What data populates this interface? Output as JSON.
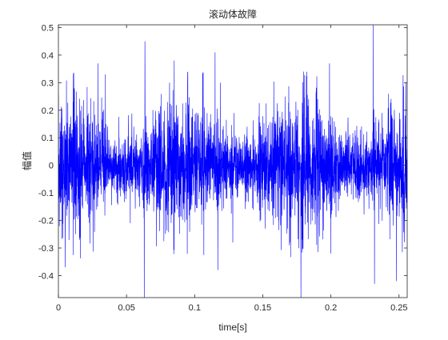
{
  "chart_data": {
    "type": "line",
    "title": "滚动体故障",
    "xlabel": "time[s]",
    "ylabel": "幅值",
    "xlim": [
      0,
      0.256
    ],
    "ylim": [
      -0.48,
      0.51
    ],
    "xticks": [
      0,
      0.05,
      0.1,
      0.15,
      0.2,
      0.25
    ],
    "xtick_labels": [
      "0",
      "0.05",
      "0.1",
      "0.15",
      "0.2",
      "0.25"
    ],
    "yticks": [
      -0.4,
      -0.3,
      -0.2,
      -0.1,
      0,
      0.1,
      0.2,
      0.3,
      0.4,
      0.5
    ],
    "ytick_labels": [
      "-0.4",
      "-0.3",
      "-0.2",
      "-0.1",
      "0",
      "0.1",
      "0.2",
      "0.3",
      "0.4",
      "0.5"
    ],
    "grid": false,
    "legend": "none",
    "series": [
      {
        "color": "#0000ff",
        "sample_rate_hz": 12000,
        "x_start": 0,
        "x_end": 0.256,
        "typical_amplitude": 0.1,
        "peaks": [
          {
            "x": 0.0635,
            "y": 0.45
          },
          {
            "x": 0.063,
            "y": -0.48
          },
          {
            "x": 0.0345,
            "y": 0.33
          },
          {
            "x": 0.029,
            "y": 0.37
          },
          {
            "x": 0.005,
            "y": -0.37
          },
          {
            "x": 0.085,
            "y": 0.38
          },
          {
            "x": 0.115,
            "y": 0.41
          },
          {
            "x": 0.117,
            "y": -0.38
          },
          {
            "x": 0.119,
            "y": 0.3
          },
          {
            "x": 0.128,
            "y": -0.28
          },
          {
            "x": 0.18,
            "y": 0.34
          },
          {
            "x": 0.178,
            "y": -0.48
          },
          {
            "x": 0.199,
            "y": 0.37
          },
          {
            "x": 0.2,
            "y": -0.32
          },
          {
            "x": 0.231,
            "y": 0.51
          },
          {
            "x": 0.232,
            "y": -0.43
          },
          {
            "x": 0.248,
            "y": -0.42
          },
          {
            "x": 0.255,
            "y": 0.3
          }
        ]
      }
    ]
  }
}
